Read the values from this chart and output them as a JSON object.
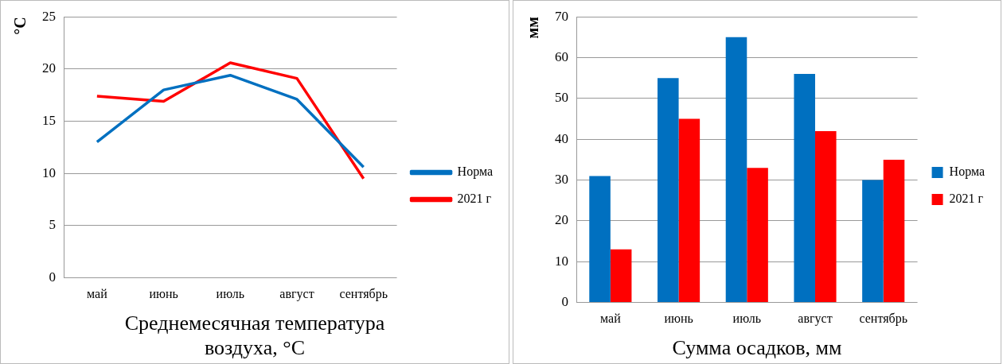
{
  "chart_data": [
    {
      "type": "line",
      "title": "Среднемесячная температура воздуха, °C",
      "ylabel": "°C",
      "categories": [
        "май",
        "июнь",
        "июль",
        "август",
        "сентябрь"
      ],
      "series": [
        {
          "name": "Норма",
          "color": "#0070c0",
          "values": [
            13.0,
            18.0,
            19.4,
            17.1,
            10.6
          ]
        },
        {
          "name": "2021 г",
          "color": "#ff0000",
          "values": [
            17.4,
            16.9,
            20.6,
            19.1,
            9.5
          ]
        }
      ],
      "ylim": [
        0,
        25
      ],
      "yticks": [
        0,
        5,
        10,
        15,
        20,
        25
      ],
      "grid": "y",
      "legend": "right",
      "marker": "none",
      "line_style": "solid"
    },
    {
      "type": "bar",
      "title": "Сумма осадков, мм",
      "ylabel": "мм",
      "categories": [
        "май",
        "июнь",
        "июль",
        "август",
        "сентябрь"
      ],
      "series": [
        {
          "name": "Норма",
          "color": "#0070c0",
          "values": [
            31,
            55,
            65,
            56,
            30
          ]
        },
        {
          "name": "2021 г",
          "color": "#ff0000",
          "values": [
            13,
            45,
            33,
            42,
            35
          ]
        }
      ],
      "ylim": [
        0,
        70
      ],
      "yticks": [
        0,
        10,
        20,
        30,
        40,
        50,
        60,
        70
      ],
      "grid": "y",
      "legend": "right"
    }
  ]
}
